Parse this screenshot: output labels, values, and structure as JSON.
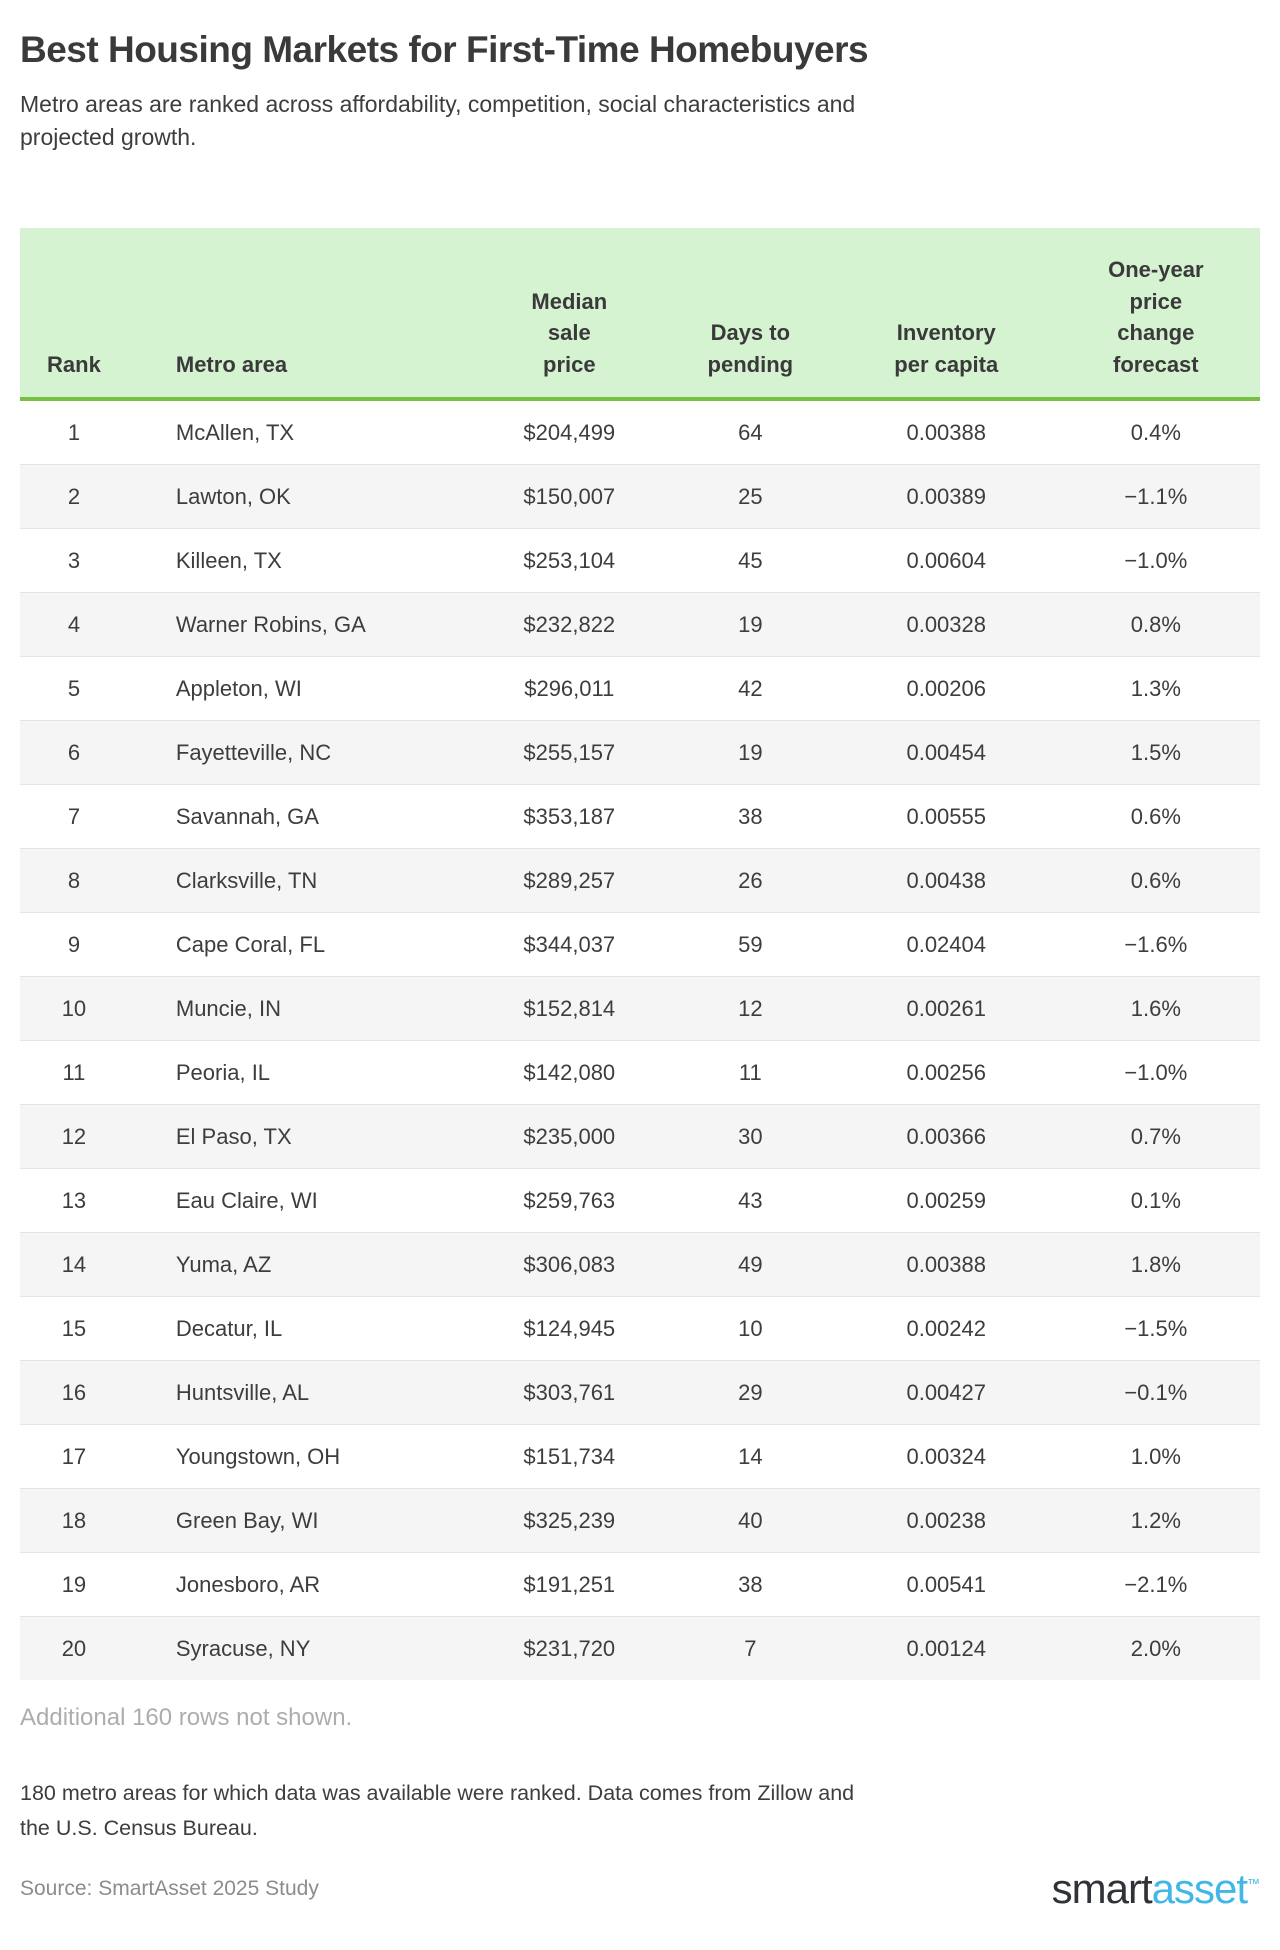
{
  "header": {
    "title": "Best Housing Markets for First-Time Homebuyers",
    "subtitle": "Metro areas are ranked across affordability, competition, social characteristics and\nprojected growth."
  },
  "chart_data": {
    "type": "table",
    "title": "Best Housing Markets for First-Time Homebuyers",
    "subtitle": "Metro areas are ranked across affordability, competition, social characteristics and projected growth.",
    "columns": [
      {
        "key": "rank",
        "label": "Rank",
        "align": "center"
      },
      {
        "key": "metro",
        "label": "Metro area",
        "align": "left"
      },
      {
        "key": "price",
        "label": "Median\nsale\nprice",
        "align": "center"
      },
      {
        "key": "days",
        "label": "Days to\npending",
        "align": "center"
      },
      {
        "key": "inventory",
        "label": "Inventory\nper capita",
        "align": "center"
      },
      {
        "key": "forecast",
        "label": "One-year\nprice\nchange\nforecast",
        "align": "center"
      }
    ],
    "rows": [
      {
        "rank": "1",
        "metro": "McAllen, TX",
        "price": "$204,499",
        "days": "64",
        "inventory": "0.00388",
        "forecast": "0.4%"
      },
      {
        "rank": "2",
        "metro": "Lawton, OK",
        "price": "$150,007",
        "days": "25",
        "inventory": "0.00389",
        "forecast": "−1.1%"
      },
      {
        "rank": "3",
        "metro": "Killeen, TX",
        "price": "$253,104",
        "days": "45",
        "inventory": "0.00604",
        "forecast": "−1.0%"
      },
      {
        "rank": "4",
        "metro": "Warner Robins, GA",
        "price": "$232,822",
        "days": "19",
        "inventory": "0.00328",
        "forecast": "0.8%"
      },
      {
        "rank": "5",
        "metro": "Appleton, WI",
        "price": "$296,011",
        "days": "42",
        "inventory": "0.00206",
        "forecast": "1.3%"
      },
      {
        "rank": "6",
        "metro": "Fayetteville, NC",
        "price": "$255,157",
        "days": "19",
        "inventory": "0.00454",
        "forecast": "1.5%"
      },
      {
        "rank": "7",
        "metro": "Savannah, GA",
        "price": "$353,187",
        "days": "38",
        "inventory": "0.00555",
        "forecast": "0.6%"
      },
      {
        "rank": "8",
        "metro": "Clarksville, TN",
        "price": "$289,257",
        "days": "26",
        "inventory": "0.00438",
        "forecast": "0.6%"
      },
      {
        "rank": "9",
        "metro": "Cape Coral, FL",
        "price": "$344,037",
        "days": "59",
        "inventory": "0.02404",
        "forecast": "−1.6%"
      },
      {
        "rank": "10",
        "metro": "Muncie, IN",
        "price": "$152,814",
        "days": "12",
        "inventory": "0.00261",
        "forecast": "1.6%"
      },
      {
        "rank": "11",
        "metro": "Peoria, IL",
        "price": "$142,080",
        "days": "11",
        "inventory": "0.00256",
        "forecast": "−1.0%"
      },
      {
        "rank": "12",
        "metro": "El Paso, TX",
        "price": "$235,000",
        "days": "30",
        "inventory": "0.00366",
        "forecast": "0.7%"
      },
      {
        "rank": "13",
        "metro": "Eau Claire, WI",
        "price": "$259,763",
        "days": "43",
        "inventory": "0.00259",
        "forecast": "0.1%"
      },
      {
        "rank": "14",
        "metro": "Yuma, AZ",
        "price": "$306,083",
        "days": "49",
        "inventory": "0.00388",
        "forecast": "1.8%"
      },
      {
        "rank": "15",
        "metro": "Decatur, IL",
        "price": "$124,945",
        "days": "10",
        "inventory": "0.00242",
        "forecast": "−1.5%"
      },
      {
        "rank": "16",
        "metro": "Huntsville, AL",
        "price": "$303,761",
        "days": "29",
        "inventory": "0.00427",
        "forecast": "−0.1%"
      },
      {
        "rank": "17",
        "metro": "Youngstown, OH",
        "price": "$151,734",
        "days": "14",
        "inventory": "0.00324",
        "forecast": "1.0%"
      },
      {
        "rank": "18",
        "metro": "Green Bay, WI",
        "price": "$325,239",
        "days": "40",
        "inventory": "0.00238",
        "forecast": "1.2%"
      },
      {
        "rank": "19",
        "metro": "Jonesboro, AR",
        "price": "$191,251",
        "days": "38",
        "inventory": "0.00541",
        "forecast": "−2.1%"
      },
      {
        "rank": "20",
        "metro": "Syracuse, NY",
        "price": "$231,720",
        "days": "7",
        "inventory": "0.00124",
        "forecast": "2.0%"
      }
    ],
    "layout_hints": {
      "header_background": "#d5f2d1",
      "header_border": "#77c043",
      "stripe_background": "#f5f5f5",
      "row_separator": "#e4e4e4",
      "striped_rows": "even"
    }
  },
  "footer": {
    "additional_note": "Additional 160 rows not shown.",
    "methodology": "180 metro areas for which data was available were ranked. Data comes from Zillow and\nthe U.S. Census Bureau.",
    "source": "Source: SmartAsset 2025 Study",
    "logo": {
      "part1": "smart",
      "part2": "asset",
      "trademark": "™"
    }
  },
  "colors": {
    "title_text": "#3a3a3a",
    "body_text": "#3d3d3d",
    "muted_note": "#adadad",
    "source_text": "#8c8c8c",
    "header_green": "#d5f2d1",
    "border_green": "#77c043",
    "stripe_gray": "#f5f5f5",
    "logo_dark": "#2f3237",
    "logo_blue": "#41b7e8"
  }
}
